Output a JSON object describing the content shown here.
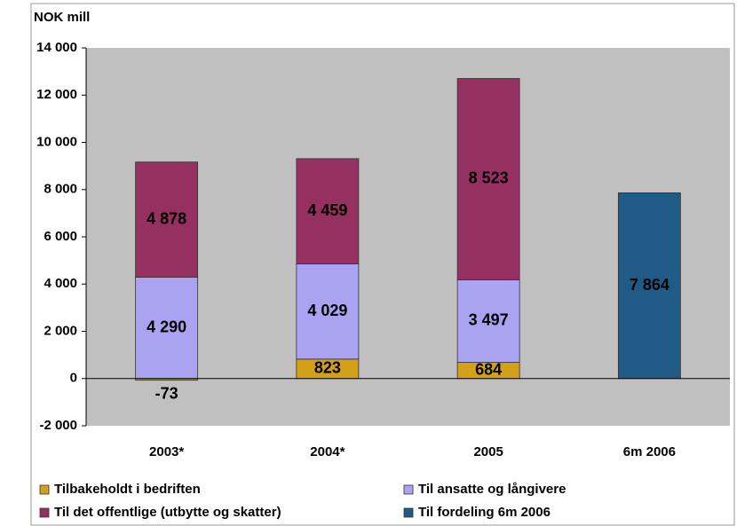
{
  "chart_data": {
    "type": "stacked_bar",
    "y_axis_label": "NOK mill",
    "categories": [
      "2003*",
      "2004*",
      "2005",
      "6m 2006"
    ],
    "series": [
      {
        "name": "Tilbakeholdt i bedriften",
        "color": "#d4a017",
        "values": [
          -73,
          823,
          684,
          null
        ],
        "value_labels": [
          "-73",
          "823",
          "684",
          null
        ]
      },
      {
        "name": "Til ansatte og långivere",
        "color": "#a9a3f2",
        "values": [
          4290,
          4029,
          3497,
          null
        ],
        "value_labels": [
          "4 290",
          "4 029",
          "3 497",
          null
        ]
      },
      {
        "name": "Til det offentlige (utbytte og skatter)",
        "color": "#963060",
        "values": [
          4878,
          4459,
          8523,
          null
        ],
        "value_labels": [
          "4 878",
          "4 459",
          "8 523",
          null
        ]
      },
      {
        "name": "Til fordeling 6m 2006",
        "color": "#1f5b86",
        "values": [
          null,
          null,
          null,
          7864
        ],
        "value_labels": [
          null,
          null,
          null,
          "7 864"
        ]
      }
    ],
    "ylim": [
      -2000,
      14000
    ],
    "yticks": [
      {
        "value": -2000,
        "label": "-2 000"
      },
      0,
      {
        "value": 2000,
        "label": "2 000"
      },
      {
        "value": 4000,
        "label": "4 000"
      },
      {
        "value": 6000,
        "label": "6 000"
      },
      {
        "value": 8000,
        "label": "8 000"
      },
      {
        "value": 10000,
        "label": "10 000"
      },
      {
        "value": 12000,
        "label": "12 000"
      },
      {
        "value": 14000,
        "label": "14 000"
      }
    ]
  }
}
